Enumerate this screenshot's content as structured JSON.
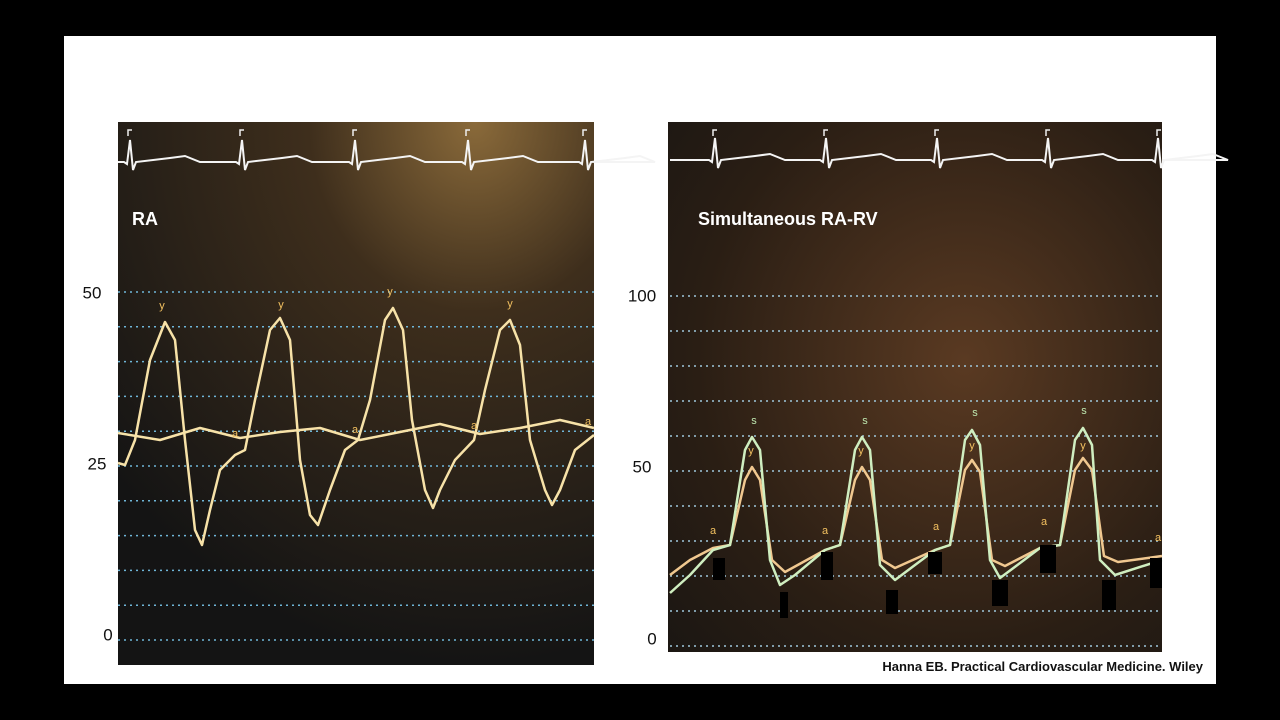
{
  "slide": {
    "left_panel": {
      "label": "RA",
      "axis_labels": [
        "50",
        "25",
        "0"
      ],
      "annotations": [
        "y",
        "y",
        "y",
        "y",
        "a",
        "a",
        "a",
        "a"
      ]
    },
    "right_panel": {
      "label": "Simultaneous RA-RV",
      "axis_labels": [
        "100",
        "50",
        "0"
      ],
      "annotations": [
        "s",
        "s",
        "s",
        "s",
        "y",
        "y",
        "y",
        "y",
        "a",
        "a",
        "a",
        "a",
        "a"
      ]
    },
    "citation": "Hanna EB. Practical Cardiovascular Medicine. Wiley"
  }
}
